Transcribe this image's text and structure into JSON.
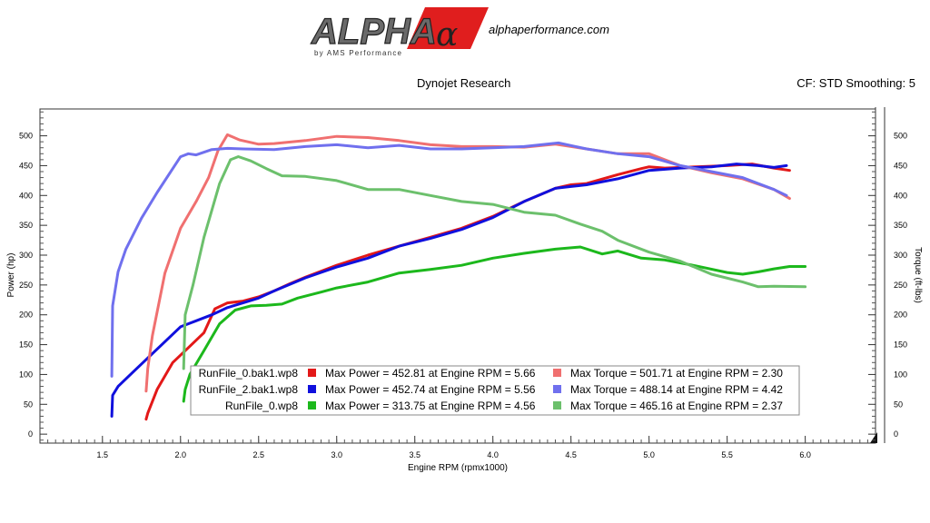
{
  "header": {
    "logo_text": "ALPHA",
    "logo_glyph": "α",
    "logo_sub": "by AMS Performance",
    "site": "alphaperformance.com",
    "title": "Dynojet Research",
    "cf": "CF: STD Smoothing: 5"
  },
  "legend": {
    "rows": [
      {
        "file": "RunFile_0.bak1.wp8",
        "power_color": "#e31818",
        "power_text": "Max Power = 452.81 at Engine RPM = 5.66",
        "torque_color": "#f07070",
        "torque_text": "Max Torque = 501.71 at Engine RPM = 2.30"
      },
      {
        "file": "RunFile_2.bak1.wp8",
        "power_color": "#1010dd",
        "power_text": "Max Power = 452.74 at Engine RPM = 5.56",
        "torque_color": "#7070ee",
        "torque_text": "Max Torque = 488.14 at Engine RPM = 4.42"
      },
      {
        "file": "RunFile_0.wp8",
        "power_color": "#1cb81c",
        "power_text": "Max Power = 313.75 at Engine RPM = 4.56",
        "torque_color": "#6cc06c",
        "torque_text": "Max Torque = 465.16 at Engine RPM = 2.37"
      }
    ]
  },
  "chart_data": {
    "type": "line",
    "xlabel": "Engine RPM (rpmx1000)",
    "ylabel": "Power (hp)",
    "y2label": "Torque (ft-lbs)",
    "xlim": [
      1.1,
      6.45
    ],
    "ylim": [
      -15,
      545
    ],
    "xticks": [
      "1.5",
      "2.0",
      "2.5",
      "3.0",
      "3.5",
      "4.0",
      "4.5",
      "5.0",
      "5.5",
      "6.0"
    ],
    "yticks": [
      "0",
      "50",
      "100",
      "150",
      "200",
      "250",
      "300",
      "350",
      "400",
      "450",
      "500"
    ],
    "grid": false,
    "legend_position": "bottom-center",
    "series": [
      {
        "name": "RunFile_0.bak1.wp8 Max Power",
        "color": "#e31818",
        "x": [
          1.78,
          1.79,
          1.85,
          1.95,
          2.05,
          2.15,
          2.22,
          2.3,
          2.4,
          2.5,
          2.6,
          2.7,
          2.8,
          3.0,
          3.2,
          3.4,
          3.6,
          3.8,
          4.0,
          4.2,
          4.4,
          4.5,
          4.6,
          4.8,
          4.95,
          5.0,
          5.1,
          5.3,
          5.5,
          5.66,
          5.8,
          5.9
        ],
        "y": [
          25,
          35,
          75,
          120,
          145,
          170,
          210,
          220,
          223,
          230,
          240,
          252,
          263,
          283,
          300,
          315,
          330,
          345,
          365,
          390,
          412,
          418,
          420,
          435,
          445,
          448,
          446,
          448,
          450,
          452.81,
          446,
          442
        ]
      },
      {
        "name": "RunFile_2.bak1.wp8 Max Power",
        "color": "#1010dd",
        "x": [
          1.56,
          1.565,
          1.6,
          1.7,
          1.8,
          1.9,
          2.0,
          2.1,
          2.2,
          2.3,
          2.4,
          2.5,
          2.6,
          2.8,
          3.0,
          3.2,
          3.4,
          3.6,
          3.8,
          4.0,
          4.2,
          4.4,
          4.5,
          4.6,
          4.8,
          5.0,
          5.2,
          5.4,
          5.56,
          5.7,
          5.8,
          5.88
        ],
        "y": [
          30,
          65,
          80,
          105,
          130,
          155,
          180,
          190,
          200,
          212,
          220,
          228,
          240,
          262,
          280,
          295,
          315,
          328,
          343,
          363,
          390,
          412,
          415,
          418,
          428,
          442,
          446,
          448,
          452.74,
          450,
          447,
          450
        ]
      },
      {
        "name": "RunFile_0.wp8 Max Power",
        "color": "#1cb81c",
        "x": [
          2.02,
          2.03,
          2.06,
          2.15,
          2.25,
          2.35,
          2.45,
          2.55,
          2.65,
          2.75,
          2.9,
          3.0,
          3.2,
          3.4,
          3.6,
          3.8,
          4.0,
          4.2,
          4.4,
          4.56,
          4.7,
          4.8,
          4.95,
          5.1,
          5.3,
          5.5,
          5.6,
          5.7,
          5.8,
          5.9,
          6.0
        ],
        "y": [
          55,
          75,
          100,
          140,
          185,
          208,
          215,
          216,
          218,
          228,
          238,
          245,
          255,
          270,
          276,
          283,
          295,
          303,
          310,
          313.75,
          302,
          307,
          295,
          292,
          282,
          271,
          268,
          272,
          277,
          281,
          281
        ]
      },
      {
        "name": "RunFile_0.bak1.wp8 Max Torque",
        "color": "#f07070",
        "x": [
          1.78,
          1.79,
          1.82,
          1.9,
          2.0,
          2.1,
          2.18,
          2.24,
          2.3,
          2.38,
          2.5,
          2.6,
          2.8,
          3.0,
          3.2,
          3.4,
          3.6,
          3.8,
          4.0,
          4.2,
          4.4,
          4.6,
          4.8,
          5.0,
          5.2,
          5.4,
          5.6,
          5.8,
          5.9
        ],
        "y": [
          72,
          110,
          165,
          270,
          345,
          390,
          430,
          475,
          501.71,
          493,
          486,
          487,
          492,
          499,
          497,
          492,
          485,
          482,
          482,
          481,
          486,
          478,
          470,
          470,
          450,
          438,
          428,
          410,
          395
        ]
      },
      {
        "name": "RunFile_2.bak1.wp8 Max Torque",
        "color": "#7070ee",
        "x": [
          1.56,
          1.565,
          1.6,
          1.65,
          1.75,
          1.85,
          1.95,
          2.0,
          2.05,
          2.1,
          2.2,
          2.3,
          2.4,
          2.6,
          2.8,
          3.0,
          3.2,
          3.4,
          3.6,
          3.8,
          4.0,
          4.2,
          4.42,
          4.6,
          4.8,
          5.0,
          5.2,
          5.4,
          5.6,
          5.8,
          5.88
        ],
        "y": [
          97,
          215,
          272,
          310,
          362,
          405,
          445,
          465,
          470,
          468,
          477,
          479,
          478,
          477,
          482,
          485,
          480,
          484,
          478,
          478,
          480,
          482,
          488.14,
          478,
          470,
          465,
          450,
          440,
          430,
          410,
          400
        ]
      },
      {
        "name": "RunFile_0.wp8 Max Torque",
        "color": "#6cc06c",
        "x": [
          2.02,
          2.03,
          2.08,
          2.15,
          2.25,
          2.32,
          2.37,
          2.45,
          2.55,
          2.65,
          2.8,
          3.0,
          3.2,
          3.4,
          3.6,
          3.8,
          4.0,
          4.2,
          4.4,
          4.56,
          4.7,
          4.8,
          5.0,
          5.2,
          5.4,
          5.6,
          5.7,
          5.8,
          6.0
        ],
        "y": [
          110,
          200,
          250,
          330,
          420,
          460,
          465.16,
          458,
          445,
          433,
          432,
          425,
          410,
          410,
          400,
          390,
          385,
          372,
          367,
          352,
          340,
          325,
          305,
          290,
          268,
          255,
          247,
          248,
          247
        ]
      }
    ]
  }
}
